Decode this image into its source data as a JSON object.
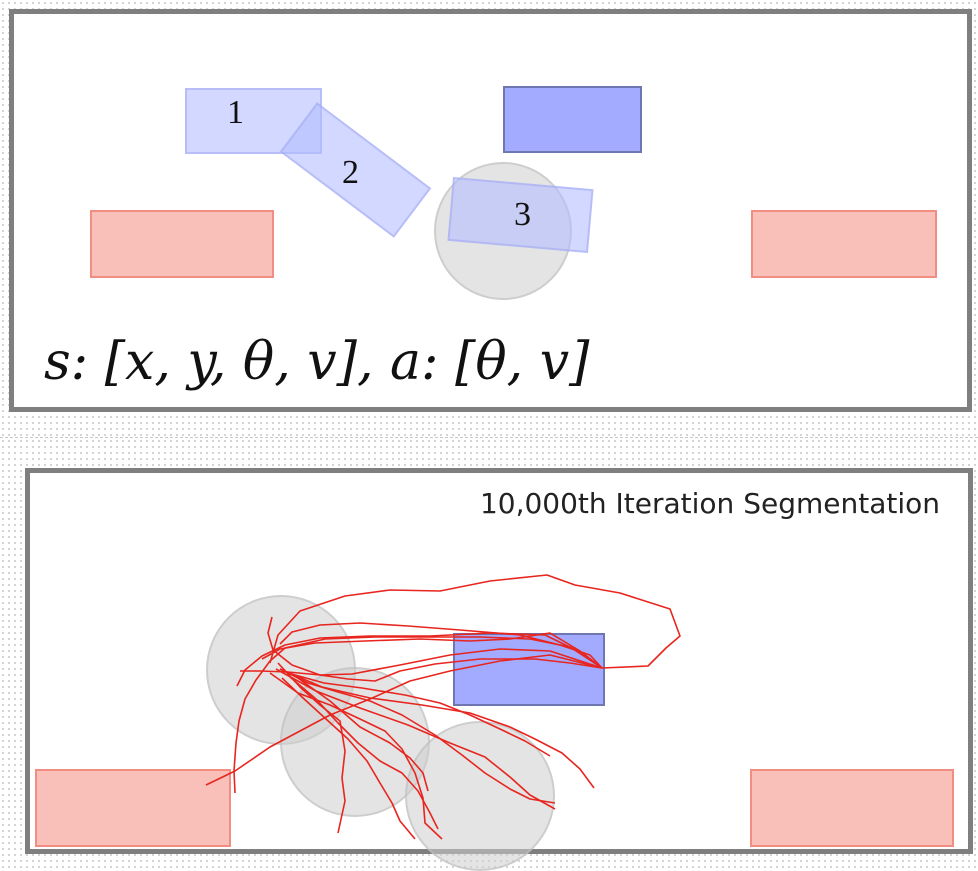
{
  "top_panel": {
    "labels": [
      "1",
      "2",
      "3"
    ],
    "formula": "s: [x, y, θ, v], a: [θ, v]"
  },
  "bottom_panel": {
    "title": "10,000th Iteration Segmentation"
  },
  "colors": {
    "goal_red": "#f48c80",
    "target_blue": "#a2abff",
    "ghost_blue": "#b2bcff",
    "circle_gray": "#cdcdcd",
    "path_red": "#e8251f",
    "border_gray": "#7f7f7f"
  }
}
